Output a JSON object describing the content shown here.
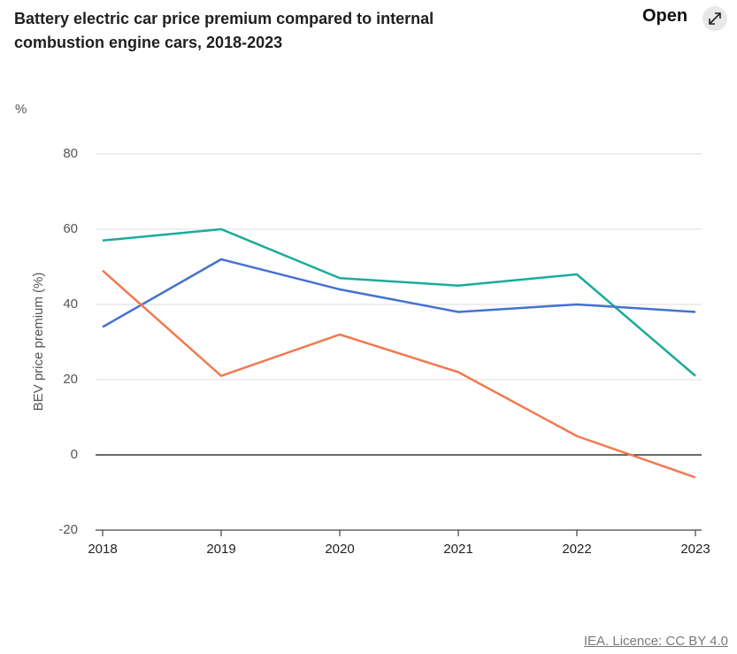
{
  "chart_data": {
    "type": "line",
    "title": "Battery electric car price premium compared to internal combustion engine cars, 2018-2023",
    "unit_label": "%",
    "y_label": "BEV price premium (%)",
    "categories": [
      "2018",
      "2019",
      "2020",
      "2021",
      "2022",
      "2023"
    ],
    "series": [
      {
        "color": "#1aab9b",
        "values": [
          57,
          60,
          47,
          45,
          48,
          21
        ]
      },
      {
        "color": "#4472cf",
        "values": [
          34,
          52,
          44,
          38,
          40,
          38
        ]
      },
      {
        "color": "#f2794f",
        "values": [
          49,
          21,
          32,
          22,
          5,
          -6
        ]
      }
    ],
    "ylim": [
      -20,
      80
    ],
    "yticks": [
      -20,
      0,
      20,
      40,
      60,
      80
    ],
    "grid": true
  },
  "open_button": "Open",
  "source": "IEA. Licence: CC BY 4.0"
}
